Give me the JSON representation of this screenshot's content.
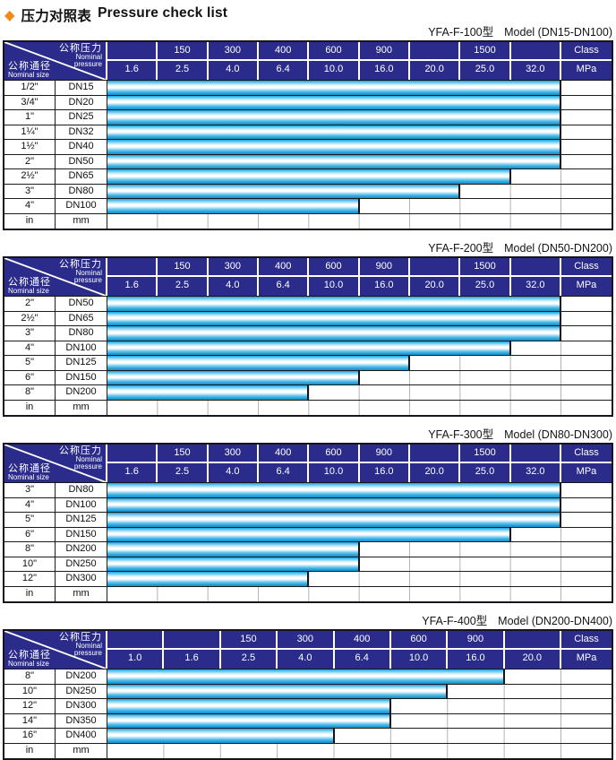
{
  "page": {
    "title_zh": "压力对照表",
    "title_en": "Pressure check list",
    "bullet_icon": "orange-diamond",
    "colors": {
      "header_navy": "#2b2b8c",
      "bar_cyan": "#29a9e0",
      "bar_highlight": "#ffffff",
      "accent_orange": "#f08a1d",
      "grid_black": "#1c1c1c",
      "grid_gray": "#b3b3b3"
    }
  },
  "header_cell": {
    "pressure_zh": "公称压力",
    "pressure_en1": "Nominal",
    "pressure_en2": "pressure",
    "size_zh": "公称通径",
    "size_en": "Nominal size"
  },
  "tables": [
    {
      "model": "YFA-F-100型",
      "range": "Model (DN15-DN100)",
      "pressure_cols": 9,
      "class_row": [
        "",
        "150",
        "300",
        "400",
        "600",
        "900",
        "",
        "1500",
        "",
        "Class"
      ],
      "mpa_row": [
        "1.6",
        "2.5",
        "4.0",
        "6.4",
        "10.0",
        "16.0",
        "20.0",
        "25.0",
        "32.0",
        "MPa"
      ],
      "rows": [
        {
          "size": "1/2\"",
          "dn": "DN15",
          "span": 9,
          "max_mpa": "32.0"
        },
        {
          "size": "3/4\"",
          "dn": "DN20",
          "span": 9,
          "max_mpa": "32.0"
        },
        {
          "size": "1\"",
          "dn": "DN25",
          "span": 9,
          "max_mpa": "32.0"
        },
        {
          "size": "1¼\"",
          "dn": "DN32",
          "span": 9,
          "max_mpa": "32.0"
        },
        {
          "size": "1½\"",
          "dn": "DN40",
          "span": 9,
          "max_mpa": "32.0"
        },
        {
          "size": "2\"",
          "dn": "DN50",
          "span": 9,
          "max_mpa": "32.0"
        },
        {
          "size": "2½\"",
          "dn": "DN65",
          "span": 8,
          "max_mpa": "25.0"
        },
        {
          "size": "3\"",
          "dn": "DN80",
          "span": 7,
          "max_mpa": "20.0"
        },
        {
          "size": "4\"",
          "dn": "DN100",
          "span": 5,
          "max_mpa": "10.0"
        },
        {
          "size": "in",
          "dn": "mm",
          "span": 0,
          "max_mpa": ""
        }
      ]
    },
    {
      "model": "YFA-F-200型",
      "range": "Model (DN50-DN200)",
      "pressure_cols": 9,
      "class_row": [
        "",
        "150",
        "300",
        "400",
        "600",
        "900",
        "",
        "1500",
        "",
        "Class"
      ],
      "mpa_row": [
        "1.6",
        "2.5",
        "4.0",
        "6.4",
        "10.0",
        "16.0",
        "20.0",
        "25.0",
        "32.0",
        "MPa"
      ],
      "rows": [
        {
          "size": "2\"",
          "dn": "DN50",
          "span": 9,
          "max_mpa": "32.0"
        },
        {
          "size": "2½\"",
          "dn": "DN65",
          "span": 9,
          "max_mpa": "32.0"
        },
        {
          "size": "3\"",
          "dn": "DN80",
          "span": 9,
          "max_mpa": "32.0"
        },
        {
          "size": "4\"",
          "dn": "DN100",
          "span": 8,
          "max_mpa": "25.0"
        },
        {
          "size": "5\"",
          "dn": "DN125",
          "span": 6,
          "max_mpa": "16.0"
        },
        {
          "size": "6\"",
          "dn": "DN150",
          "span": 5,
          "max_mpa": "10.0"
        },
        {
          "size": "8\"",
          "dn": "DN200",
          "span": 4,
          "max_mpa": "6.4"
        },
        {
          "size": "in",
          "dn": "mm",
          "span": 0,
          "max_mpa": ""
        }
      ]
    },
    {
      "model": "YFA-F-300型",
      "range": "Model (DN80-DN300)",
      "pressure_cols": 9,
      "class_row": [
        "",
        "150",
        "300",
        "400",
        "600",
        "900",
        "",
        "1500",
        "",
        "Class"
      ],
      "mpa_row": [
        "1.6",
        "2.5",
        "4.0",
        "6.4",
        "10.0",
        "16.0",
        "20.0",
        "25.0",
        "32.0",
        "MPa"
      ],
      "rows": [
        {
          "size": "3\"",
          "dn": "DN80",
          "span": 9,
          "max_mpa": "32.0"
        },
        {
          "size": "4\"",
          "dn": "DN100",
          "span": 9,
          "max_mpa": "32.0"
        },
        {
          "size": "5\"",
          "dn": "DN125",
          "span": 9,
          "max_mpa": "32.0"
        },
        {
          "size": "6\"",
          "dn": "DN150",
          "span": 8,
          "max_mpa": "25.0"
        },
        {
          "size": "8\"",
          "dn": "DN200",
          "span": 5,
          "max_mpa": "10.0"
        },
        {
          "size": "10\"",
          "dn": "DN250",
          "span": 5,
          "max_mpa": "10.0"
        },
        {
          "size": "12\"",
          "dn": "DN300",
          "span": 4,
          "max_mpa": "6.4"
        },
        {
          "size": "in",
          "dn": "mm",
          "span": 0,
          "max_mpa": ""
        }
      ]
    },
    {
      "model": "YFA-F-400型",
      "range": "Model (DN200-DN400)",
      "pressure_cols": 8,
      "class_row": [
        "",
        "",
        "150",
        "300",
        "400",
        "600",
        "900",
        "",
        "Class"
      ],
      "mpa_row": [
        "1.0",
        "1.6",
        "2.5",
        "4.0",
        "6.4",
        "10.0",
        "16.0",
        "20.0",
        "MPa"
      ],
      "rows": [
        {
          "size": "8\"",
          "dn": "DN200",
          "span": 7,
          "max_mpa": "16.0"
        },
        {
          "size": "10\"",
          "dn": "DN250",
          "span": 6,
          "max_mpa": "10.0"
        },
        {
          "size": "12\"",
          "dn": "DN300",
          "span": 5,
          "max_mpa": "6.4"
        },
        {
          "size": "14\"",
          "dn": "DN350",
          "span": 5,
          "max_mpa": "6.4"
        },
        {
          "size": "16\"",
          "dn": "DN400",
          "span": 4,
          "max_mpa": "4.0"
        },
        {
          "size": "in",
          "dn": "mm",
          "span": 0,
          "max_mpa": ""
        }
      ]
    }
  ]
}
